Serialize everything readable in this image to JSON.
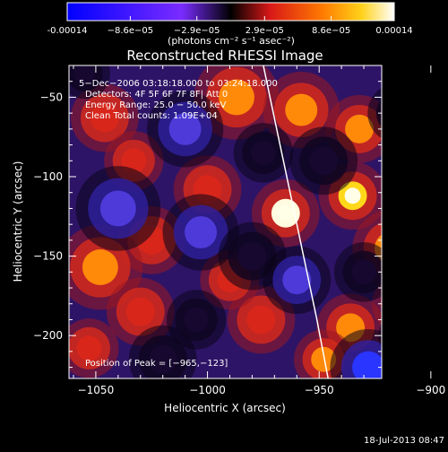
{
  "colorbar": {
    "tick_labels": [
      "-0.00014",
      "−8.6e−05",
      "−2.9e−05",
      "2.9e−05",
      "8.6e−05",
      "0.00014"
    ],
    "tick_values": [
      -0.00014,
      -8.6e-05,
      -2.9e-05,
      2.9e-05,
      8.6e-05,
      0.00014
    ],
    "range": [
      -0.00014,
      0.00014
    ],
    "units_label": "(photons cm⁻² s⁻¹ asec⁻²)"
  },
  "chart_data": {
    "type": "heatmap",
    "title": "Reconstructed RHESSI Image",
    "xlabel": "Heliocentric X (arcsec)",
    "ylabel": "Heliocentric Y (arcsec)",
    "xlim": [
      -1062,
      -922
    ],
    "ylim": [
      -227,
      -30
    ],
    "xticks": [
      -1050,
      -1000,
      -950,
      -900
    ],
    "xtick_labels": [
      "−1050",
      "−1000",
      "−950",
      "−900"
    ],
    "yticks": [
      -50,
      -100,
      -150,
      -200
    ],
    "ytick_labels": [
      "−50",
      "−100",
      "−150",
      "−200"
    ],
    "annotations": [
      "5−Dec−2006 03:18:18.000 to 03:24:18.000",
      "Detectors: 4F 5F 6F 7F 8F| Att 0",
      "Energy Range: 25.0 − 50.0 keV",
      "Clean      Total counts: 1.09E+04"
    ],
    "peak_label": "Position of Peak = [−965,−123]",
    "peak": {
      "x": -965,
      "y": -123
    },
    "limb_curve": [
      [
        -975,
        -30
      ],
      [
        -969,
        -70
      ],
      [
        -963,
        -110
      ],
      [
        -957,
        -150
      ],
      [
        -951,
        -190
      ],
      [
        -946,
        -227
      ]
    ],
    "blobs": [
      {
        "x": -965,
        "y": -123,
        "v": 1.0,
        "r": 8
      },
      {
        "x": -987,
        "y": -50,
        "v": 0.65,
        "r": 10
      },
      {
        "x": -958,
        "y": -58,
        "v": 0.55,
        "r": 9
      },
      {
        "x": -1046,
        "y": -63,
        "v": 0.5,
        "r": 8
      },
      {
        "x": -1033,
        "y": -90,
        "v": 0.45,
        "r": 7
      },
      {
        "x": -1025,
        "y": -140,
        "v": 0.45,
        "r": 8
      },
      {
        "x": -1048,
        "y": -157,
        "v": 0.65,
        "r": 10
      },
      {
        "x": -1030,
        "y": -185,
        "v": 0.4,
        "r": 8
      },
      {
        "x": -935,
        "y": -112,
        "v": 0.8,
        "r": 8
      },
      {
        "x": -918,
        "y": -145,
        "v": 0.65,
        "r": 9
      },
      {
        "x": -932,
        "y": -70,
        "v": 0.55,
        "r": 8
      },
      {
        "x": -905,
        "y": -95,
        "v": 0.6,
        "r": 7
      },
      {
        "x": -913,
        "y": -180,
        "v": 0.5,
        "r": 7
      },
      {
        "x": -936,
        "y": -195,
        "v": 0.6,
        "r": 8
      },
      {
        "x": -976,
        "y": -190,
        "v": 0.45,
        "r": 8
      },
      {
        "x": -948,
        "y": -215,
        "v": 0.55,
        "r": 7
      },
      {
        "x": -1000,
        "y": -108,
        "v": 0.45,
        "r": 8
      },
      {
        "x": -990,
        "y": -165,
        "v": 0.4,
        "r": 7
      },
      {
        "x": -1053,
        "y": -208,
        "v": 0.45,
        "r": 7
      },
      {
        "x": -1010,
        "y": -70,
        "v": -0.6,
        "r": 9
      },
      {
        "x": -1040,
        "y": -120,
        "v": -0.55,
        "r": 10
      },
      {
        "x": -1003,
        "y": -135,
        "v": -0.6,
        "r": 9
      },
      {
        "x": -980,
        "y": -150,
        "v": -0.5,
        "r": 8
      },
      {
        "x": -1020,
        "y": -215,
        "v": -0.45,
        "r": 8
      },
      {
        "x": -1005,
        "y": -190,
        "v": -0.45,
        "r": 7
      },
      {
        "x": -960,
        "y": -165,
        "v": -0.55,
        "r": 8
      },
      {
        "x": -928,
        "y": -220,
        "v": -0.9,
        "r": 9
      },
      {
        "x": -912,
        "y": -200,
        "v": -0.5,
        "r": 6
      },
      {
        "x": -948,
        "y": -90,
        "v": -0.5,
        "r": 8
      },
      {
        "x": -915,
        "y": -60,
        "v": -0.5,
        "r": 7
      },
      {
        "x": -930,
        "y": -160,
        "v": -0.45,
        "r": 7
      },
      {
        "x": -975,
        "y": -85,
        "v": -0.4,
        "r": 7
      },
      {
        "x": -1055,
        "y": -35,
        "v": -0.4,
        "r": 6
      }
    ]
  },
  "footer": {
    "timestamp": "18-Jul-2013 08:47"
  }
}
